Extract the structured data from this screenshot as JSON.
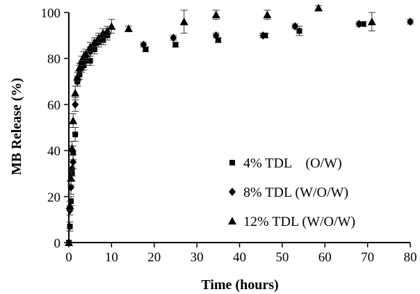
{
  "chart_data": {
    "type": "scatter",
    "title": "",
    "xlabel": "Time (hours)",
    "ylabel": "MB Release (%)",
    "xlim": [
      0,
      80
    ],
    "ylim": [
      0,
      100
    ],
    "xticks": [
      0,
      10,
      20,
      30,
      40,
      50,
      60,
      70,
      80
    ],
    "yticks": [
      0,
      20,
      40,
      60,
      80,
      100
    ],
    "grid": false,
    "legend_position": "bottom-right",
    "series": [
      {
        "name": "4% TDL    (O/W)",
        "marker": "square",
        "color": "#000000",
        "x": [
          0,
          0.25,
          0.5,
          0.75,
          1,
          1.5,
          2,
          2.5,
          3,
          3.5,
          4,
          5,
          6,
          7,
          8,
          9,
          18,
          25,
          35,
          46,
          54,
          69
        ],
        "y": [
          0,
          7,
          18,
          30,
          39,
          47,
          70,
          73,
          76,
          77,
          79,
          79,
          84,
          87,
          88,
          90,
          84,
          86,
          88,
          90,
          92,
          95
        ],
        "err": [
          0,
          2,
          2,
          3,
          3,
          3,
          2,
          2,
          2,
          2,
          2,
          2,
          2,
          2,
          2,
          2,
          1,
          1,
          1,
          1,
          2,
          1
        ]
      },
      {
        "name": "8% TDL (W/O/W)",
        "marker": "diamond",
        "color": "#000000",
        "x": [
          0,
          0.25,
          0.5,
          0.75,
          1,
          1.5,
          2,
          2.5,
          3,
          3.5,
          4,
          5,
          6,
          7,
          8,
          9,
          17.5,
          24.5,
          34.5,
          45.5,
          53,
          68,
          80
        ],
        "y": [
          0,
          14,
          24,
          32,
          35,
          60,
          70,
          75,
          77,
          79,
          81,
          83,
          86,
          88,
          89,
          91,
          86,
          89,
          90,
          90,
          94,
          95,
          96
        ],
        "err": [
          0,
          2,
          3,
          3,
          3,
          3,
          2,
          2,
          2,
          2,
          2,
          2,
          2,
          2,
          2,
          2,
          1,
          1,
          1,
          1,
          1,
          1,
          1
        ]
      },
      {
        "name": "12% TDL (W/O/W)",
        "marker": "triangle",
        "color": "#000000",
        "x": [
          0,
          0.25,
          0.5,
          0.75,
          1,
          1.5,
          2,
          2.5,
          3,
          3.5,
          4,
          5,
          6,
          7,
          8,
          9,
          10,
          14,
          27,
          34.5,
          46.5,
          58.5,
          71
        ],
        "y": [
          0,
          16,
          28,
          41,
          53,
          65,
          72,
          76,
          79,
          81,
          82,
          85,
          87,
          89,
          91,
          92,
          94,
          93,
          96,
          99,
          99,
          102,
          96
        ],
        "err": [
          0,
          2,
          3,
          3,
          3,
          3,
          2,
          2,
          2,
          2,
          2,
          2,
          2,
          2,
          2,
          2,
          3,
          1,
          5,
          2,
          2,
          1,
          4
        ]
      }
    ]
  }
}
